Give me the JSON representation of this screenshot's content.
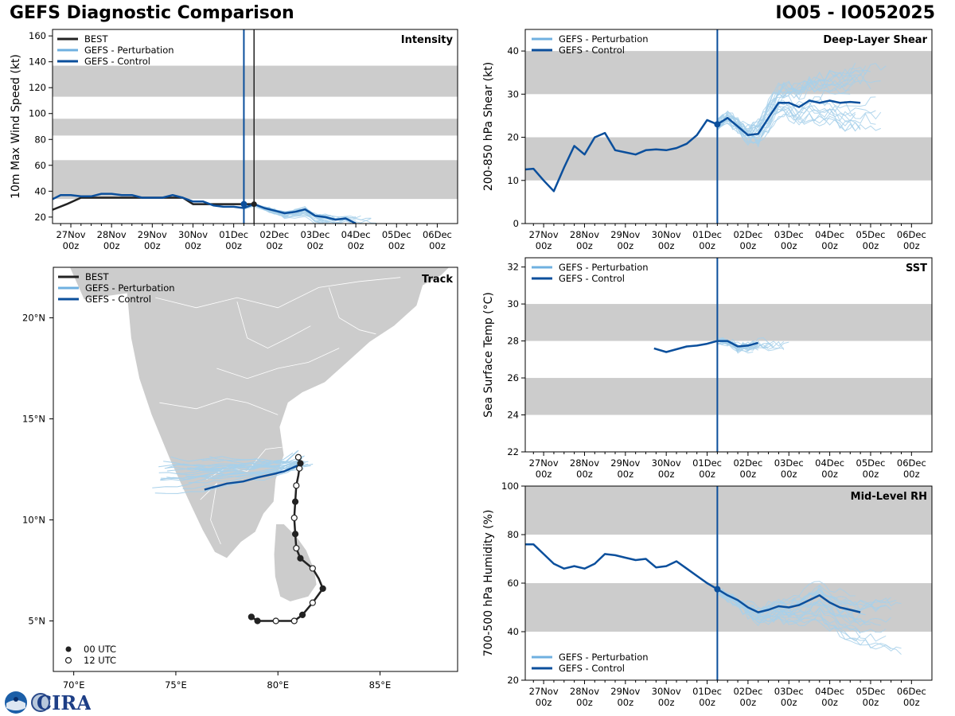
{
  "header": {
    "title": "GEFS Diagnostic Comparison",
    "storm": "IO05 - IO052025"
  },
  "logo": {
    "label": "CIRA",
    "noaa": "NOAA"
  },
  "colors": {
    "best": "#222222",
    "perturbation": "#6fb0e0",
    "perturbation_thin": "#a7d0ea",
    "control": "#0b4f9c",
    "band": "#cccccc"
  },
  "time_axis": {
    "ticks": [
      {
        "day": "27Nov",
        "hour": "00z"
      },
      {
        "day": "28Nov",
        "hour": "00z"
      },
      {
        "day": "29Nov",
        "hour": "00z"
      },
      {
        "day": "30Nov",
        "hour": "00z"
      },
      {
        "day": "01Dec",
        "hour": "00z"
      },
      {
        "day": "02Dec",
        "hour": "00z"
      },
      {
        "day": "03Dec",
        "hour": "00z"
      },
      {
        "day": "04Dec",
        "hour": "00z"
      },
      {
        "day": "05Dec",
        "hour": "00z"
      },
      {
        "day": "06Dec",
        "hour": "00z"
      }
    ],
    "range_days": [
      -0.45,
      9.5
    ],
    "init_day": 4.25
  },
  "chart_data": [
    {
      "id": "intensity",
      "type": "line",
      "title": "Intensity",
      "ylabel": "10m Max Wind Speed (kt)",
      "ylim": [
        15,
        165
      ],
      "yticks": [
        20,
        40,
        60,
        80,
        100,
        120,
        140,
        160
      ],
      "bands": [
        [
          34,
          64
        ],
        [
          83,
          96
        ],
        [
          113,
          137
        ]
      ],
      "best_time_line": 4.5,
      "legend": [
        "BEST",
        "GEFS - Perturbation",
        "GEFS - Control"
      ],
      "series": [
        {
          "name": "BEST",
          "x": [
            -0.5,
            -0.1,
            0.25,
            0.5,
            0.75,
            1,
            1.5,
            2,
            2.5,
            2.75,
            3,
            3.25,
            3.5,
            3.75,
            4,
            4.25,
            4.5
          ],
          "y": [
            25,
            30,
            35,
            35,
            35,
            35,
            35,
            35,
            35,
            35,
            30,
            30,
            30,
            30,
            30,
            30,
            30
          ]
        },
        {
          "name": "GEFS - Control",
          "x": [
            -0.5,
            -0.25,
            0,
            0.25,
            0.5,
            0.75,
            1,
            1.25,
            1.5,
            1.75,
            2,
            2.25,
            2.5,
            2.75,
            3,
            3.25,
            3.5,
            3.75,
            4,
            4.25,
            4.5,
            4.75,
            5,
            5.25,
            5.5,
            5.75,
            6,
            6.25,
            6.5,
            6.75,
            7
          ],
          "y": [
            33,
            37,
            37,
            36,
            36,
            38,
            38,
            37,
            37,
            35,
            35,
            35,
            37,
            35,
            32,
            32,
            29,
            28,
            28,
            27,
            30,
            27,
            25,
            23,
            24,
            26,
            21,
            20,
            18,
            19,
            15
          ]
        }
      ]
    },
    {
      "id": "shear",
      "type": "line",
      "title": "Deep-Layer Shear",
      "ylabel": "200-850 hPa Shear (kt)",
      "ylim": [
        0,
        45
      ],
      "yticks": [
        0,
        10,
        20,
        30,
        40
      ],
      "bands": [
        [
          10,
          20
        ],
        [
          30,
          40
        ]
      ],
      "legend": [
        "GEFS - Perturbation",
        "GEFS - Control"
      ],
      "series": [
        {
          "name": "GEFS - Control",
          "x": [
            -0.5,
            -0.25,
            0,
            0.25,
            0.5,
            0.75,
            1,
            1.25,
            1.5,
            1.75,
            2,
            2.25,
            2.5,
            2.75,
            3,
            3.25,
            3.5,
            3.75,
            4,
            4.25,
            4.5,
            4.75,
            5,
            5.25,
            5.5,
            5.75,
            6,
            6.25,
            6.5,
            6.75,
            7,
            7.25,
            7.5,
            7.75
          ],
          "y": [
            12.5,
            12.7,
            10,
            7.5,
            13,
            18,
            16,
            20,
            21,
            17,
            16.5,
            16,
            17,
            17.2,
            17,
            17.5,
            18.5,
            20.5,
            24,
            23,
            24.5,
            22.5,
            20.5,
            20.8,
            24.5,
            28,
            28,
            27,
            28.5,
            28,
            28.5,
            28,
            28.2,
            28
          ]
        }
      ]
    },
    {
      "id": "track",
      "type": "scatter",
      "title": "Track",
      "xlabel": "",
      "ylabel": "",
      "xlim": [
        69,
        88.8
      ],
      "ylim": [
        2.5,
        22.5
      ],
      "xticks": [
        "70°E",
        "75°E",
        "80°E",
        "85°E"
      ],
      "yticks": [
        "5°N",
        "10°N",
        "15°N",
        "20°N"
      ],
      "legend": [
        "BEST",
        "GEFS - Perturbation",
        "GEFS - Control"
      ],
      "marker_legend": [
        "00 UTC",
        "12 UTC"
      ],
      "best_track": {
        "lon": [
          78.7,
          79,
          79.9,
          80.8,
          81.2,
          81.7,
          82.2,
          82.0,
          81.7,
          81.1,
          80.9,
          80.85,
          80.8,
          80.85,
          80.9,
          81.0,
          81.05,
          81.1,
          81.0
        ],
        "lat": [
          5.2,
          5.0,
          5.0,
          5.0,
          5.3,
          5.9,
          6.6,
          7.1,
          7.6,
          8.1,
          8.6,
          9.3,
          10.1,
          10.9,
          11.7,
          12.2,
          12.55,
          12.8,
          13.1
        ],
        "marker_types": [
          "00",
          "00",
          "12",
          "12",
          "00",
          "12",
          "00",
          "",
          "12",
          "00",
          "12",
          "00",
          "12",
          "00",
          "12",
          "",
          "12",
          "00",
          "12"
        ]
      },
      "control_track": {
        "lon": [
          81.0,
          80.3,
          79.9,
          79.0,
          78.3,
          77.5,
          76.4
        ],
        "lat": [
          12.7,
          12.4,
          12.3,
          12.1,
          11.9,
          11.8,
          11.5
        ]
      }
    },
    {
      "id": "sst",
      "type": "line",
      "title": "SST",
      "ylabel": "Sea Surface Temp (°C)",
      "ylim": [
        22,
        32.5
      ],
      "yticks": [
        22,
        24,
        26,
        28,
        30,
        32
      ],
      "bands": [
        [
          24,
          26
        ],
        [
          28,
          30
        ]
      ],
      "legend": [
        "GEFS - Perturbation",
        "GEFS - Control"
      ],
      "series": [
        {
          "name": "GEFS - Control",
          "x": [
            2.7,
            3,
            3.25,
            3.5,
            3.75,
            4,
            4.25,
            4.5,
            4.75,
            5,
            5.25
          ],
          "y": [
            27.6,
            27.4,
            27.55,
            27.7,
            27.75,
            27.85,
            28,
            28,
            27.7,
            27.75,
            27.9
          ]
        }
      ]
    },
    {
      "id": "rh",
      "type": "line",
      "title": "Mid-Level RH",
      "ylabel": "700-500 hPa Humidity (%)",
      "ylim": [
        20,
        100
      ],
      "yticks": [
        20,
        40,
        60,
        80,
        100
      ],
      "bands": [
        [
          40,
          60
        ],
        [
          80,
          100
        ]
      ],
      "legend": [
        "GEFS - Perturbation",
        "GEFS - Control"
      ],
      "series": [
        {
          "name": "GEFS - Control",
          "x": [
            -0.5,
            -0.25,
            0,
            0.25,
            0.5,
            0.75,
            1,
            1.25,
            1.5,
            1.75,
            2,
            2.25,
            2.5,
            2.75,
            3,
            3.25,
            3.5,
            3.75,
            4,
            4.25,
            4.5,
            4.75,
            5,
            5.25,
            5.5,
            5.75,
            6,
            6.25,
            6.5,
            6.75,
            7,
            7.25,
            7.5,
            7.75
          ],
          "y": [
            76,
            76,
            72,
            68,
            66,
            67,
            66,
            68,
            72,
            71.5,
            70.5,
            69.5,
            70,
            66.5,
            67,
            69,
            66,
            63,
            60,
            57.5,
            55,
            53,
            50,
            48,
            49,
            50.5,
            50,
            51,
            53,
            55,
            52,
            50,
            49,
            48
          ]
        }
      ]
    }
  ]
}
